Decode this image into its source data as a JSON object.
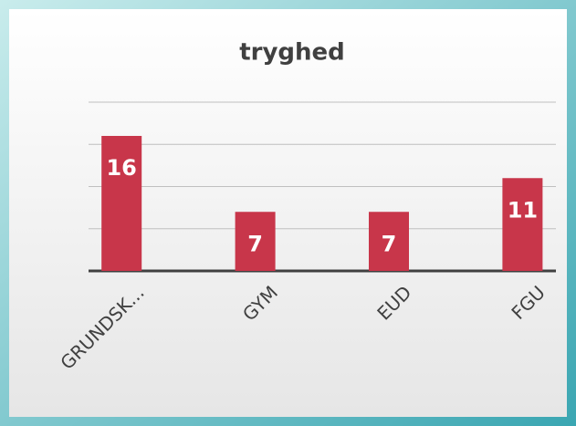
{
  "chart_data": {
    "type": "bar",
    "title": "tryghed",
    "categories": [
      "GRUNDSK...",
      "GYM",
      "EUD",
      "FGU"
    ],
    "values": [
      16,
      7,
      7,
      11
    ],
    "color": "#c8364a",
    "ylim": [
      0,
      20
    ],
    "yticks": [
      0,
      5,
      10,
      15,
      20
    ],
    "grid": true
  }
}
